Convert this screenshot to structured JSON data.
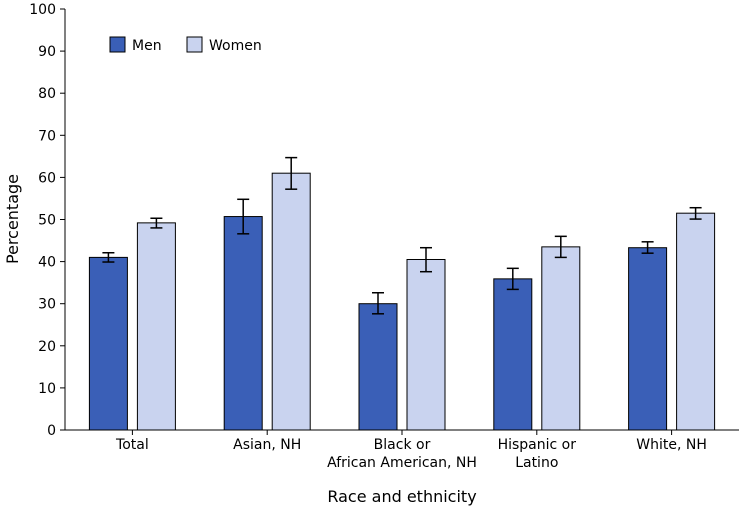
{
  "chart_data": {
    "type": "bar",
    "title": "",
    "xlabel": "Race and ethnicity",
    "ylabel": "Percentage",
    "ylim": [
      0,
      100
    ],
    "yticks": [
      0,
      10,
      20,
      30,
      40,
      50,
      60,
      70,
      80,
      90,
      100
    ],
    "categories": [
      [
        "Total"
      ],
      [
        "Asian, NH"
      ],
      [
        "Black or",
        "African American, NH"
      ],
      [
        "Hispanic or",
        "Latino"
      ],
      [
        "White, NH"
      ]
    ],
    "series": [
      {
        "name": "Men",
        "color": "#3a5fb7",
        "values": [
          41.0,
          50.7,
          30.0,
          35.9,
          43.3
        ],
        "ci_low": [
          39.9,
          46.6,
          27.6,
          33.4,
          42.0
        ],
        "ci_high": [
          42.1,
          54.8,
          32.6,
          38.4,
          44.7
        ]
      },
      {
        "name": "Women",
        "color": "#c9d3ef",
        "values": [
          49.2,
          61.0,
          40.5,
          43.5,
          51.5
        ],
        "ci_low": [
          48.0,
          57.2,
          37.6,
          41.0,
          50.1
        ],
        "ci_high": [
          50.3,
          64.7,
          43.3,
          46.0,
          52.8
        ]
      }
    ],
    "legend_position": "top-left",
    "grid": false,
    "error_bars": true
  }
}
